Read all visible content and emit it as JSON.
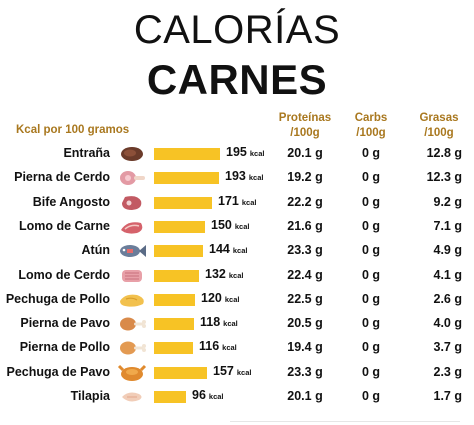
{
  "title_line1": "CALORÍAS",
  "title_line2": "CARNES",
  "headers": {
    "kcal": "Kcal por 100 gramos",
    "protein_line1": "Proteínas",
    "protein_line2": "/100g",
    "carbs_line1": "Carbs",
    "carbs_line2": "/100g",
    "fat_line1": "Grasas",
    "fat_line2": "/100g"
  },
  "kcal_unit": "kcal",
  "colors": {
    "bar": "#f7c325",
    "header": "#a9781f"
  },
  "chart_data": {
    "type": "bar",
    "orientation": "horizontal",
    "categories": [
      "Entraña",
      "Pierna de Cerdo",
      "Bife Angosto",
      "Lomo de Carne",
      "Atún",
      "Lomo de Cerdo",
      "Pechuga de Pollo",
      "Pierna de Pavo",
      "Pierna de Pollo",
      "Pechuga de Pavo",
      "Tilapia"
    ],
    "values": [
      195,
      193,
      171,
      150,
      144,
      132,
      120,
      118,
      116,
      157,
      96
    ],
    "xlim": [
      0,
      195
    ],
    "icons": [
      "steak-icon",
      "pork-leg-icon",
      "beef-cut-icon",
      "meat-slice-icon",
      "fish-icon",
      "pork-loin-icon",
      "chicken-breast-icon",
      "turkey-leg-icon",
      "chicken-leg-icon",
      "roast-turkey-icon",
      "fish-fillet-icon"
    ],
    "rows": [
      {
        "name": "Entraña",
        "kcal": "195",
        "protein": "20.1 g",
        "carbs": "0 g",
        "fat": "12.8 g"
      },
      {
        "name": "Pierna de Cerdo",
        "kcal": "193",
        "protein": "19.2 g",
        "carbs": "0 g",
        "fat": "12.3 g"
      },
      {
        "name": "Bife Angosto",
        "kcal": "171",
        "protein": "22.2 g",
        "carbs": "0 g",
        "fat": "9.2 g"
      },
      {
        "name": "Lomo de Carne",
        "kcal": "150",
        "protein": "21.6 g",
        "carbs": "0 g",
        "fat": "7.1 g"
      },
      {
        "name": "Atún",
        "kcal": "144",
        "protein": "23.3 g",
        "carbs": "0 g",
        "fat": "4.9 g"
      },
      {
        "name": "Lomo de Cerdo",
        "kcal": "132",
        "protein": "22.4 g",
        "carbs": "0 g",
        "fat": "4.1 g"
      },
      {
        "name": "Pechuga de Pollo",
        "kcal": "120",
        "protein": "22.5 g",
        "carbs": "0 g",
        "fat": "2.6 g"
      },
      {
        "name": "Pierna de Pavo",
        "kcal": "118",
        "protein": "20.5 g",
        "carbs": "0 g",
        "fat": "4.0 g"
      },
      {
        "name": "Pierna de Pollo",
        "kcal": "116",
        "protein": "19.4 g",
        "carbs": "0 g",
        "fat": "3.7 g"
      },
      {
        "name": "Pechuga de Pavo",
        "kcal": "157",
        "protein": "23.3 g",
        "carbs": "0 g",
        "fat": "2.3 g"
      },
      {
        "name": "Tilapia",
        "kcal": "96",
        "protein": "20.1 g",
        "carbs": "0 g",
        "fat": "1.7 g"
      }
    ]
  }
}
